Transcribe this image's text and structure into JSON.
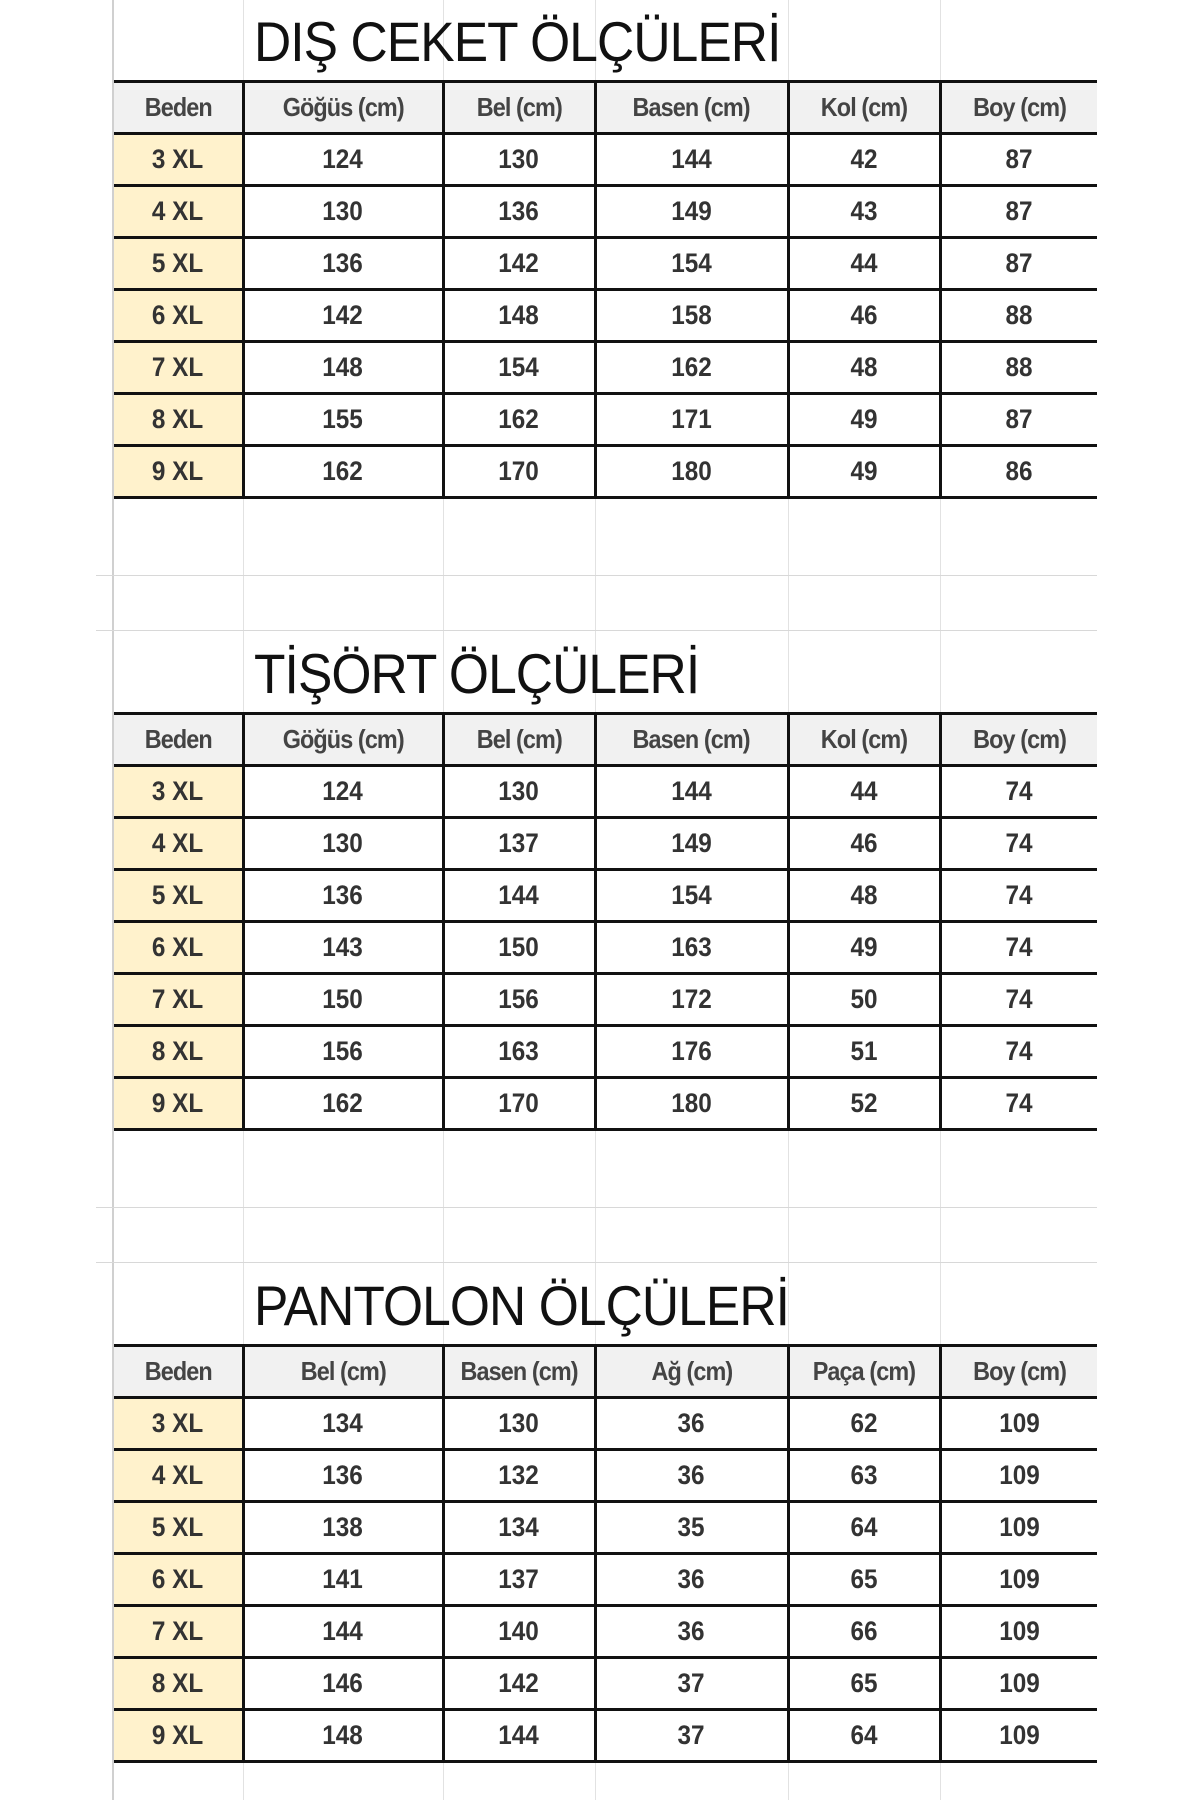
{
  "colors": {
    "size_cell": "#fff2cc",
    "header_bg": "#f1f1f1",
    "border": "#111111"
  },
  "tables": [
    {
      "title": "DIŞ CEKET ÖLÇÜLERİ",
      "headers": [
        "Beden",
        "Göğüs (cm)",
        "Bel (cm)",
        "Basen (cm)",
        "Kol (cm)",
        "Boy (cm)"
      ],
      "rows": [
        [
          "3 XL",
          "124",
          "130",
          "144",
          "42",
          "87"
        ],
        [
          "4 XL",
          "130",
          "136",
          "149",
          "43",
          "87"
        ],
        [
          "5 XL",
          "136",
          "142",
          "154",
          "44",
          "87"
        ],
        [
          "6 XL",
          "142",
          "148",
          "158",
          "46",
          "88"
        ],
        [
          "7 XL",
          "148",
          "154",
          "162",
          "48",
          "88"
        ],
        [
          "8 XL",
          "155",
          "162",
          "171",
          "49",
          "87"
        ],
        [
          "9 XL",
          "162",
          "170",
          "180",
          "49",
          "86"
        ]
      ]
    },
    {
      "title": "TİŞÖRT  ÖLÇÜLERİ",
      "headers": [
        "Beden",
        "Göğüs (cm)",
        "Bel (cm)",
        "Basen (cm)",
        "Kol (cm)",
        "Boy (cm)"
      ],
      "rows": [
        [
          "3 XL",
          "124",
          "130",
          "144",
          "44",
          "74"
        ],
        [
          "4 XL",
          "130",
          "137",
          "149",
          "46",
          "74"
        ],
        [
          "5 XL",
          "136",
          "144",
          "154",
          "48",
          "74"
        ],
        [
          "6 XL",
          "143",
          "150",
          "163",
          "49",
          "74"
        ],
        [
          "7 XL",
          "150",
          "156",
          "172",
          "50",
          "74"
        ],
        [
          "8 XL",
          "156",
          "163",
          "176",
          "51",
          "74"
        ],
        [
          "9 XL",
          "162",
          "170",
          "180",
          "52",
          "74"
        ]
      ]
    },
    {
      "title": "PANTOLON ÖLÇÜLERİ",
      "headers": [
        "Beden",
        "Bel (cm)",
        "Basen (cm)",
        "Ağ (cm)",
        "Paça (cm)",
        "Boy (cm)"
      ],
      "rows": [
        [
          "3 XL",
          "134",
          "130",
          "36",
          "62",
          "109"
        ],
        [
          "4 XL",
          "136",
          "132",
          "36",
          "63",
          "109"
        ],
        [
          "5 XL",
          "138",
          "134",
          "35",
          "64",
          "109"
        ],
        [
          "6 XL",
          "141",
          "137",
          "36",
          "65",
          "109"
        ],
        [
          "7 XL",
          "144",
          "140",
          "36",
          "66",
          "109"
        ],
        [
          "8 XL",
          "146",
          "142",
          "37",
          "65",
          "109"
        ],
        [
          "9 XL",
          "148",
          "144",
          "37",
          "64",
          "109"
        ]
      ]
    }
  ]
}
